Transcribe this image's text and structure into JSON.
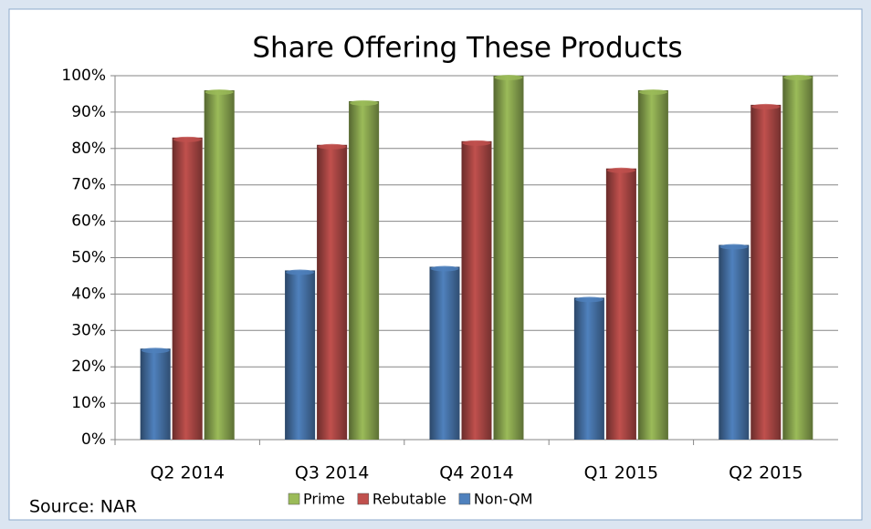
{
  "chart_data": {
    "type": "bar",
    "title": "Share Offering These Products",
    "source": "Source: NAR",
    "categories": [
      "Q2 2014",
      "Q3 2014",
      "Q4 2014",
      "Q1 2015",
      "Q2 2015"
    ],
    "series": [
      {
        "name": "Non-QM",
        "color": "#4f81bd",
        "values": [
          25,
          46.5,
          47.5,
          39,
          53.5
        ]
      },
      {
        "name": "Rebutable",
        "color": "#c0504d",
        "values": [
          83,
          81,
          82,
          74.5,
          92
        ]
      },
      {
        "name": "Prime",
        "color": "#9bbb59",
        "values": [
          96,
          93,
          100,
          96,
          100
        ]
      }
    ],
    "ylim": [
      0,
      100
    ],
    "yticks": [
      {
        "value": 0,
        "label": "0%"
      },
      {
        "value": 10,
        "label": "10%"
      },
      {
        "value": 20,
        "label": "20%"
      },
      {
        "value": 30,
        "label": "30%"
      },
      {
        "value": 40,
        "label": "40%"
      },
      {
        "value": 50,
        "label": "50%"
      },
      {
        "value": 60,
        "label": "60%"
      },
      {
        "value": 70,
        "label": "70%"
      },
      {
        "value": 80,
        "label": "80%"
      },
      {
        "value": 90,
        "label": "90%"
      },
      {
        "value": 100,
        "label": "100%"
      }
    ],
    "grid": true
  }
}
